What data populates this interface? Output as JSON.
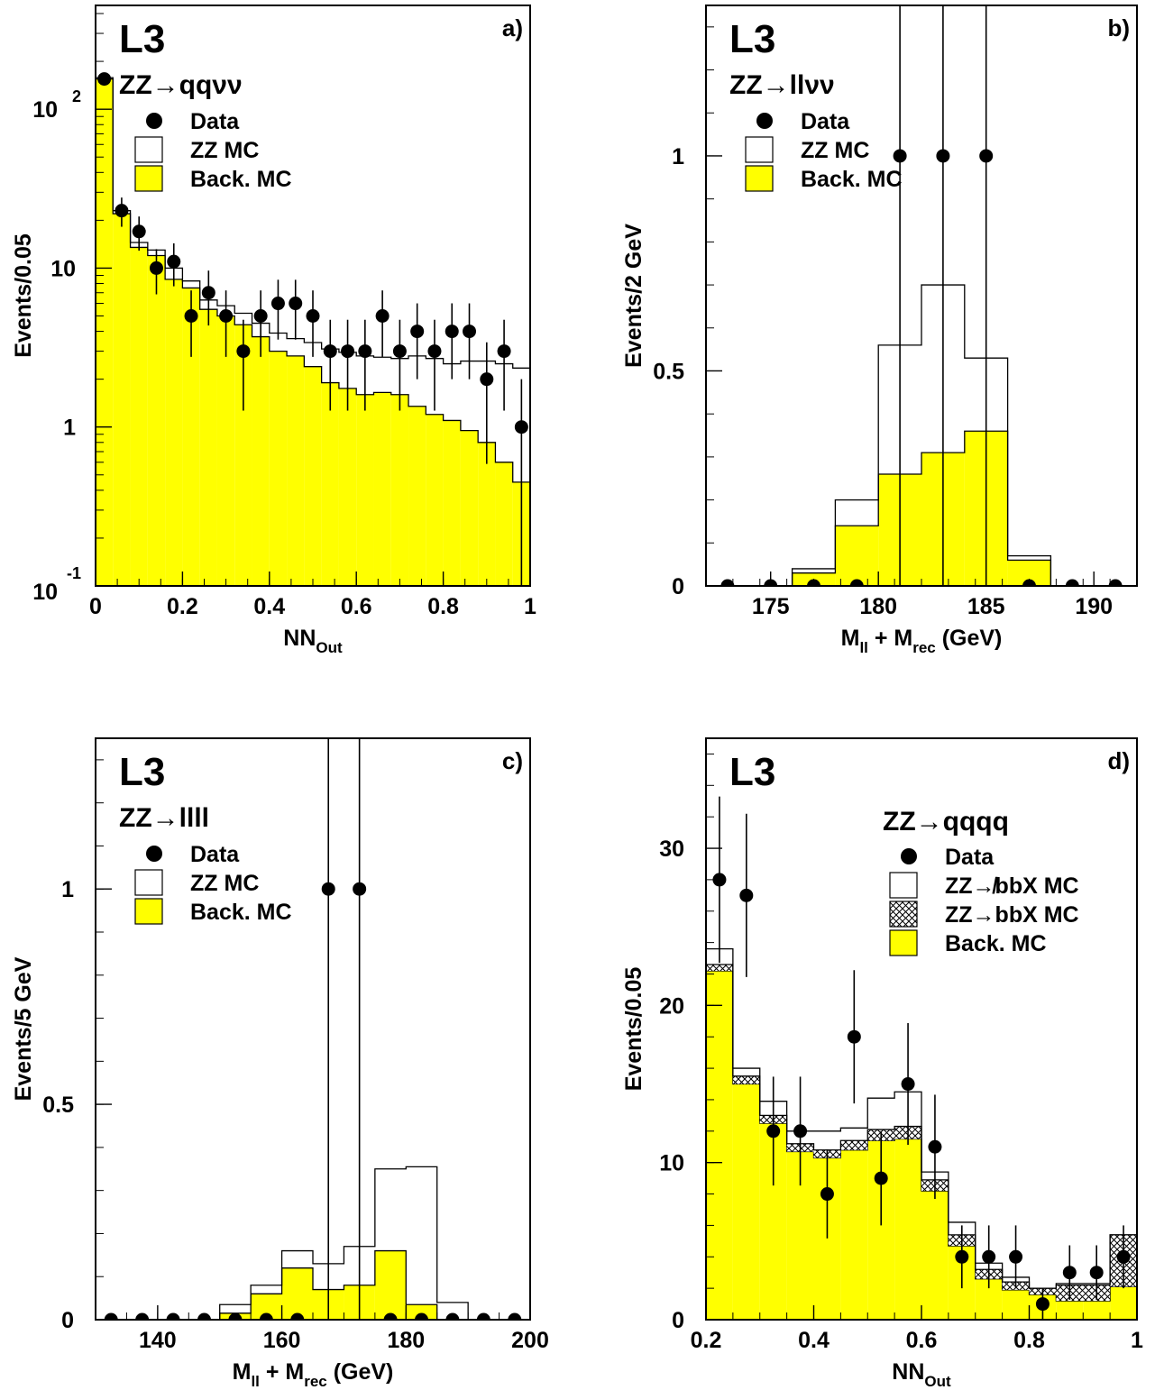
{
  "figure": {
    "experiment_label": "L3"
  },
  "chart_data": [
    {
      "type": "histogram",
      "panel_label": "a)",
      "experiment_label": "L3",
      "process": {
        "pre": "ZZ",
        "post": "qqνν"
      },
      "xlabel": {
        "main": "NN",
        "sub": "Out",
        "rest": ""
      },
      "ylabel": "Events/0.05",
      "yscale": "log",
      "xlim": [
        0,
        1
      ],
      "ylim": [
        0.1,
        450
      ],
      "xticks": [
        0,
        0.2,
        0.4,
        0.6,
        0.8,
        1
      ],
      "xtick_labels": [
        "0",
        "0.2",
        "0.4",
        "0.6",
        "0.8",
        "1"
      ],
      "ytick_labels_log": [
        {
          "value": 0.1,
          "base": "10",
          "exp": "-1"
        },
        {
          "value": 1,
          "base": "1",
          "exp": ""
        },
        {
          "value": 10,
          "base": "10",
          "exp": ""
        },
        {
          "value": 100,
          "base": "10",
          "exp": "2"
        }
      ],
      "bin_edges": [
        0,
        0.04,
        0.08,
        0.12,
        0.16,
        0.2,
        0.24,
        0.28,
        0.32,
        0.36,
        0.4,
        0.44,
        0.48,
        0.52,
        0.56,
        0.6,
        0.64,
        0.68,
        0.72,
        0.76,
        0.8,
        0.84,
        0.88,
        0.92,
        0.96,
        1.0
      ],
      "stacks": [
        {
          "name": "Back. MC",
          "fill": "#ffff00",
          "values": [
            155,
            22,
            13.5,
            12,
            8.5,
            7.5,
            5.5,
            5,
            4.4,
            3.7,
            3,
            2.8,
            2.4,
            1.9,
            1.75,
            1.6,
            1.65,
            1.6,
            1.35,
            1.2,
            1.1,
            0.95,
            0.8,
            0.6,
            0.45
          ]
        },
        {
          "name": "ZZ MC",
          "fill": "none",
          "values": [
            3,
            1,
            1,
            1,
            1.5,
            0.8,
            0.8,
            0.8,
            0.8,
            0.8,
            0.9,
            0.8,
            1.0,
            1.2,
            1.2,
            1.2,
            1.1,
            1.1,
            1.45,
            1.5,
            1.4,
            1.65,
            1.8,
            1.9,
            1.9
          ]
        }
      ],
      "data_points": {
        "x": [
          0.02,
          0.06,
          0.1,
          0.14,
          0.18,
          0.22,
          0.26,
          0.3,
          0.34,
          0.38,
          0.42,
          0.46,
          0.5,
          0.54,
          0.58,
          0.62,
          0.66,
          0.7,
          0.74,
          0.78,
          0.82,
          0.86,
          0.9,
          0.94,
          0.98
        ],
        "y": [
          155,
          23,
          17,
          10,
          11,
          5,
          7,
          5,
          3,
          5,
          6,
          6,
          5,
          3,
          3,
          3,
          5,
          3,
          4,
          3,
          4,
          4,
          2,
          3,
          1
        ]
      },
      "legend": {
        "placement": "top-left",
        "entries": [
          {
            "label": "Data",
            "kind": "marker"
          },
          {
            "label": "ZZ MC",
            "kind": "box",
            "fill": "#ffffff"
          },
          {
            "label": "Back. MC",
            "kind": "box",
            "fill": "#ffff00"
          }
        ]
      }
    },
    {
      "type": "histogram",
      "panel_label": "b)",
      "experiment_label": "L3",
      "process": {
        "pre": "ZZ",
        "post": "llνν"
      },
      "xlabel": {
        "main": "M",
        "sub": "ll",
        "rest": " + M",
        "sub2": "rec",
        "tail": " (GeV)"
      },
      "ylabel": "Events/2 GeV",
      "yscale": "linear",
      "xlim": [
        172,
        192
      ],
      "ylim": [
        0,
        1.35
      ],
      "xticks": [
        175,
        180,
        185,
        190
      ],
      "xtick_labels": [
        "175",
        "180",
        "185",
        "190"
      ],
      "yticks": [
        0,
        0.5,
        1
      ],
      "ytick_labels": [
        "0",
        "0.5",
        "1"
      ],
      "bin_edges": [
        172,
        174,
        176,
        178,
        180,
        182,
        184,
        186,
        188,
        190,
        192
      ],
      "stacks": [
        {
          "name": "Back. MC",
          "fill": "#ffff00",
          "values": [
            0,
            0,
            0.03,
            0.14,
            0.26,
            0.31,
            0.36,
            0.06,
            0,
            0
          ]
        },
        {
          "name": "ZZ MC",
          "fill": "none",
          "values": [
            0,
            0,
            0.01,
            0.06,
            0.3,
            0.39,
            0.17,
            0.01,
            0,
            0
          ]
        }
      ],
      "data_points": {
        "x": [
          173,
          175,
          177,
          179,
          181,
          183,
          185,
          187,
          189,
          191
        ],
        "y": [
          0,
          0,
          0,
          0,
          1,
          1,
          1,
          0,
          0,
          0
        ]
      },
      "legend": {
        "placement": "top-left",
        "entries": [
          {
            "label": "Data",
            "kind": "marker"
          },
          {
            "label": "ZZ MC",
            "kind": "box",
            "fill": "#ffffff"
          },
          {
            "label": "Back. MC",
            "kind": "box",
            "fill": "#ffff00"
          }
        ]
      }
    },
    {
      "type": "histogram",
      "panel_label": "c)",
      "experiment_label": "L3",
      "process": {
        "pre": "ZZ",
        "post": "llll"
      },
      "xlabel": {
        "main": "M",
        "sub": "ll",
        "rest": " + M",
        "sub2": "rec",
        "tail": " (GeV)"
      },
      "ylabel": "Events/5 GeV",
      "yscale": "linear",
      "xlim": [
        130,
        200
      ],
      "ylim": [
        0,
        1.35
      ],
      "xticks": [
        140,
        160,
        180,
        200
      ],
      "xtick_labels": [
        "140",
        "160",
        "180",
        "200"
      ],
      "yticks": [
        0,
        0.5,
        1
      ],
      "ytick_labels": [
        "0",
        "0.5",
        "1"
      ],
      "bin_edges": [
        130,
        135,
        140,
        145,
        150,
        155,
        160,
        165,
        170,
        175,
        180,
        185,
        190,
        195,
        200
      ],
      "stacks": [
        {
          "name": "Back. MC",
          "fill": "#ffff00",
          "values": [
            0,
            0,
            0,
            0,
            0.015,
            0.06,
            0.12,
            0.07,
            0.08,
            0.16,
            0.035,
            0,
            0,
            0
          ]
        },
        {
          "name": "ZZ MC",
          "fill": "none",
          "values": [
            0,
            0,
            0,
            0,
            0.02,
            0.02,
            0.04,
            0.06,
            0.09,
            0.19,
            0.32,
            0.04,
            0,
            0
          ]
        }
      ],
      "data_points": {
        "x": [
          132.5,
          137.5,
          142.5,
          147.5,
          152.5,
          157.5,
          162.5,
          167.5,
          172.5,
          177.5,
          182.5,
          187.5,
          192.5,
          197.5
        ],
        "y": [
          0,
          0,
          0,
          0,
          0,
          0,
          0,
          1,
          1,
          0,
          0,
          0,
          0,
          0
        ]
      },
      "legend": {
        "placement": "top-left",
        "entries": [
          {
            "label": "Data",
            "kind": "marker"
          },
          {
            "label": "ZZ MC",
            "kind": "box",
            "fill": "#ffffff"
          },
          {
            "label": "Back. MC",
            "kind": "box",
            "fill": "#ffff00"
          }
        ]
      }
    },
    {
      "type": "histogram",
      "panel_label": "d)",
      "experiment_label": "L3",
      "process": {
        "pre": "ZZ",
        "post": "qqqq"
      },
      "xlabel": {
        "main": "NN",
        "sub": "Out",
        "rest": ""
      },
      "ylabel": "Events/0.05",
      "yscale": "linear",
      "xlim": [
        0.2,
        1.0
      ],
      "ylim": [
        0,
        37
      ],
      "xticks": [
        0.2,
        0.4,
        0.6,
        0.8,
        1
      ],
      "xtick_labels": [
        "0.2",
        "0.4",
        "0.6",
        "0.8",
        "1"
      ],
      "yticks": [
        0,
        10,
        20,
        30
      ],
      "ytick_labels": [
        "0",
        "10",
        "20",
        "30"
      ],
      "bin_edges": [
        0.2,
        0.25,
        0.3,
        0.35,
        0.4,
        0.45,
        0.5,
        0.55,
        0.6,
        0.65,
        0.7,
        0.75,
        0.8,
        0.85,
        0.9,
        0.95,
        1.0
      ],
      "stacks": [
        {
          "name": "Back. MC",
          "fill": "#ffff00",
          "values": [
            22.2,
            15.0,
            12.5,
            10.7,
            10.3,
            10.8,
            11.4,
            11.5,
            8.2,
            4.7,
            2.6,
            1.9,
            1.6,
            1.2,
            1.2,
            2.1
          ]
        },
        {
          "name": "ZZ→bbX MC",
          "fill": "crosshatch",
          "values": [
            0.4,
            0.5,
            0.5,
            0.5,
            0.5,
            0.6,
            0.7,
            0.8,
            0.7,
            0.7,
            0.6,
            0.5,
            0.4,
            1.0,
            1.0,
            3.3
          ]
        },
        {
          "name": "ZZ↛bbX MC",
          "fill": "none",
          "values": [
            1.0,
            0.5,
            0.9,
            0.8,
            1.2,
            0.8,
            2.0,
            2.2,
            0.5,
            0.8,
            0.4,
            0.3,
            0.0,
            0.1,
            0.1,
            0.0
          ]
        }
      ],
      "data_points": {
        "x": [
          0.225,
          0.275,
          0.325,
          0.375,
          0.425,
          0.475,
          0.525,
          0.575,
          0.625,
          0.675,
          0.725,
          0.775,
          0.825,
          0.875,
          0.925,
          0.975
        ],
        "y": [
          28,
          27,
          12,
          12,
          8,
          18,
          9,
          15,
          11,
          4,
          4,
          4,
          1,
          3,
          3,
          4
        ]
      },
      "legend": {
        "placement": "top-right",
        "entries": [
          {
            "label": "Data",
            "kind": "marker"
          },
          {
            "label": "ZZ↛bbX MC",
            "kind": "box",
            "fill": "#ffffff"
          },
          {
            "label": "ZZ→bbX MC",
            "kind": "box",
            "fill": "crosshatch"
          },
          {
            "label": "Back. MC",
            "kind": "box",
            "fill": "#ffff00"
          }
        ]
      }
    }
  ]
}
